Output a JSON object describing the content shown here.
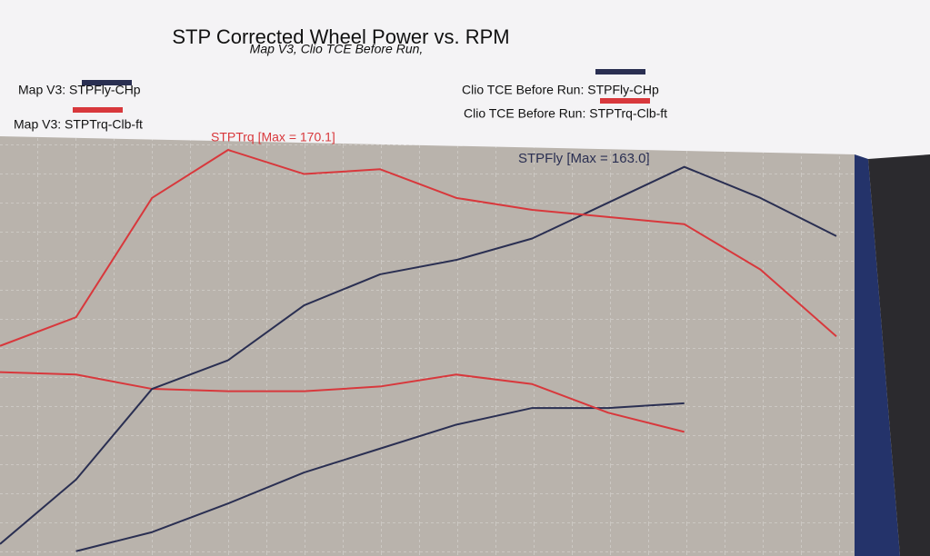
{
  "chart_data": {
    "type": "line",
    "title": "STP Corrected Wheel Power vs. RPM",
    "subtitle": "Map V3, Clio TCE Before Run,",
    "annotations": [
      "STPTrq [Max = 170.1]",
      "STPFly [Max = 163.0]"
    ],
    "categories": [
      null,
      null,
      null,
      null,
      null,
      null,
      null,
      null,
      null,
      null,
      null,
      null
    ],
    "ylim": [
      0,
      180
    ],
    "grid": true,
    "series": [
      {
        "name": "Map V3: STPFly-CHp",
        "color": "#2a2f52",
        "values": [
          null,
          2,
          10,
          22,
          35,
          45,
          55,
          62,
          62,
          64,
          null,
          null
        ]
      },
      {
        "name": "Map V3: STPTrq-Clb-ft",
        "color": "#d8383c",
        "values": [
          77,
          76,
          70,
          69,
          69,
          71,
          76,
          72,
          60,
          52,
          null,
          null
        ]
      },
      {
        "name": "Clio TCE Before Run: STPFly-CHp",
        "color": "#2a2f52",
        "values": [
          5,
          32,
          70,
          82,
          105,
          118,
          124,
          133,
          148,
          163.0,
          150,
          134
        ]
      },
      {
        "name": "Clio TCE Before Run: STPTrq-Clb-ft",
        "color": "#d8383c",
        "values": [
          88,
          100,
          150,
          170.1,
          160,
          162,
          150,
          145,
          142,
          139,
          120,
          92
        ]
      }
    ]
  }
}
